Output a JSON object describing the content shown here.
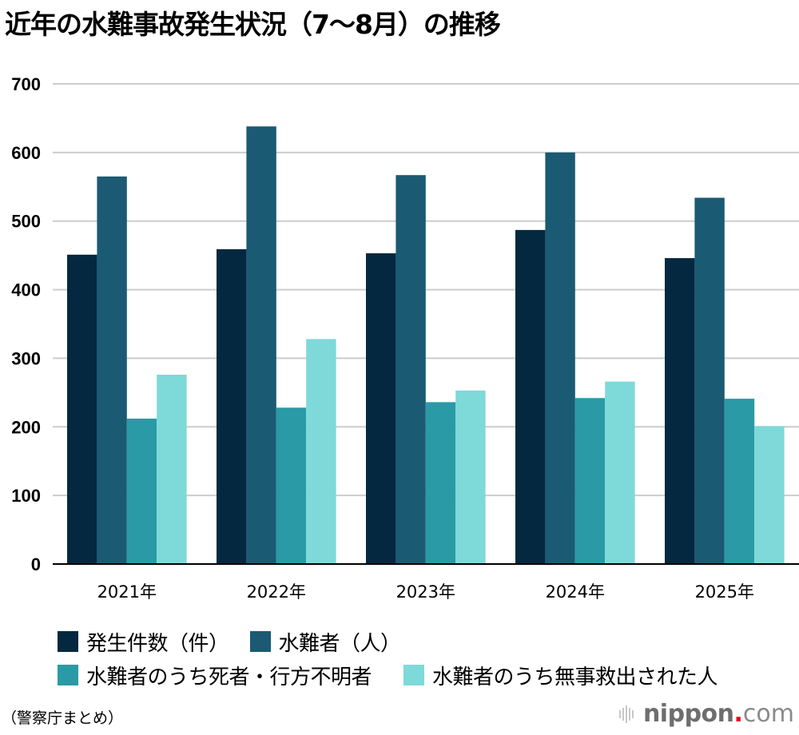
{
  "title": "近年の水難事故発生状況（7〜8月）の推移",
  "source": "（警察庁まとめ）",
  "logo": {
    "name": "nippon",
    "dot": ".",
    "tld": "com",
    "icon": "sound-bars-icon"
  },
  "colors": {
    "series1": "#03283f",
    "series2": "#1a5a73",
    "series3": "#2a9aa6",
    "series4": "#7ed9d9",
    "grid": "#cccccc",
    "axis": "#000000",
    "logo_dot": "#e60012"
  },
  "chart_data": {
    "type": "bar",
    "title": "近年の水難事故発生状況（7〜8月）の推移",
    "xlabel": "",
    "ylabel": "",
    "categories": [
      "2021年",
      "2022年",
      "2023年",
      "2024年",
      "2025年"
    ],
    "yticks": [
      "0",
      "100",
      "200",
      "300",
      "400",
      "500",
      "600",
      "700"
    ],
    "ylim": [
      0,
      700
    ],
    "grid": true,
    "legend_position": "bottom",
    "series": [
      {
        "name": "発生件数（件）",
        "values": [
          451,
          459,
          453,
          487,
          446
        ]
      },
      {
        "name": "水難者（人）",
        "values": [
          565,
          638,
          567,
          600,
          534
        ]
      },
      {
        "name": "水難者のうち死者・行方不明者",
        "values": [
          212,
          228,
          236,
          242,
          241
        ]
      },
      {
        "name": "水難者のうち無事救出された人",
        "values": [
          276,
          328,
          253,
          266,
          201
        ]
      }
    ]
  }
}
